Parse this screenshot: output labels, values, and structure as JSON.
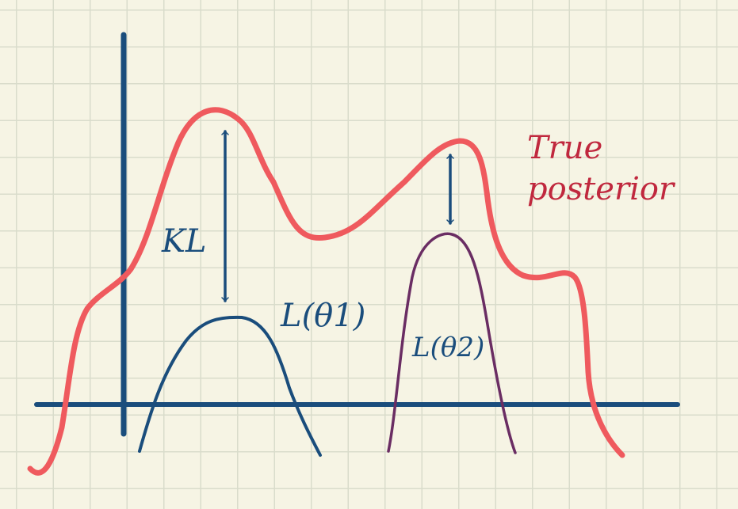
{
  "labels": {
    "kl": "KL",
    "lower_bound_1": "L(θ1)",
    "lower_bound_2": "L(θ2)",
    "true_posterior_line1": "True",
    "true_posterior_line2": "posterior"
  },
  "colors": {
    "posterior_curve": "#ef5a5e",
    "axes": "#1a4d7c",
    "bound_1_curve": "#1a4d7c",
    "bound_2_curve": "#6a2d63",
    "arrows": "#1a4d7c",
    "title_text": "#c0283e",
    "grid": "#d9dccb",
    "background": "#f6f4e4"
  }
}
